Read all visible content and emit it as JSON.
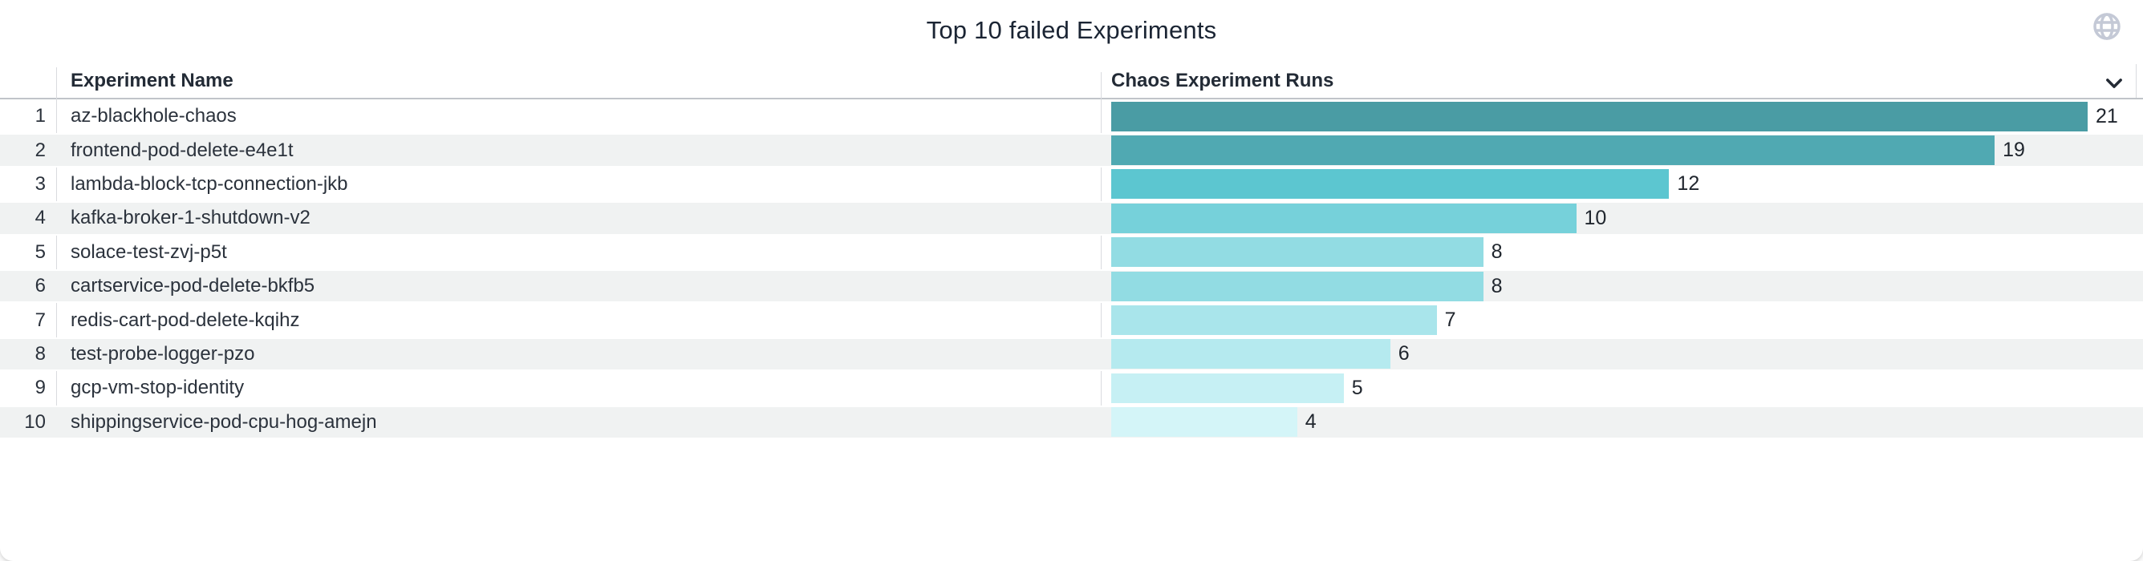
{
  "panel": {
    "title": "Top 10 failed Experiments",
    "title_color": "#1a2433",
    "icons": {
      "globe": "globe-icon",
      "header_chevron": "chevron-down-icon"
    }
  },
  "table": {
    "columns": {
      "rank": "",
      "name": "Experiment Name",
      "runs": "Chaos Experiment Runs"
    },
    "stripe_color": "#f0f2f2",
    "divider_color": "#d9dbdf",
    "header_border_color": "#c0c4c9"
  },
  "chart_data": {
    "type": "bar",
    "orientation": "horizontal",
    "title": "Top 10 failed Experiments",
    "series_label": "Chaos Experiment Runs",
    "xlim": [
      0,
      21
    ],
    "grid": false,
    "legend": "none",
    "value_labels": "outside-end",
    "categories": [
      "az-blackhole-chaos",
      "frontend-pod-delete-e4e1t",
      "lambda-block-tcp-connection-jkb",
      "kafka-broker-1-shutdown-v2",
      "solace-test-zvj-p5t",
      "cartservice-pod-delete-bkfb5",
      "redis-cart-pod-delete-kqihz",
      "test-probe-logger-pzo",
      "gcp-vm-stop-identity",
      "shippingservice-pod-cpu-hog-amejn"
    ],
    "values": [
      21,
      19,
      12,
      10,
      8,
      8,
      7,
      6,
      5,
      4
    ],
    "rows": [
      {
        "rank": "1",
        "name": "az-blackhole-chaos",
        "value": 21,
        "color": "#4A9CA4"
      },
      {
        "rank": "2",
        "name": "frontend-pod-delete-e4e1t",
        "value": 19,
        "color": "#50A9B2"
      },
      {
        "rank": "3",
        "name": "lambda-block-tcp-connection-jkb",
        "value": 12,
        "color": "#5CC6D0"
      },
      {
        "rank": "4",
        "name": "kafka-broker-1-shutdown-v2",
        "value": 10,
        "color": "#76D1DA"
      },
      {
        "rank": "5",
        "name": "solace-test-zvj-p5t",
        "value": 8,
        "color": "#92DCE3"
      },
      {
        "rank": "6",
        "name": "cartservice-pod-delete-bkfb5",
        "value": 8,
        "color": "#92DCE3"
      },
      {
        "rank": "7",
        "name": "redis-cart-pod-delete-kqihz",
        "value": 7,
        "color": "#A9E5EB"
      },
      {
        "rank": "8",
        "name": "test-probe-logger-pzo",
        "value": 6,
        "color": "#B5EAEF"
      },
      {
        "rank": "9",
        "name": "gcp-vm-stop-identity",
        "value": 5,
        "color": "#C6F0F4"
      },
      {
        "rank": "10",
        "name": "shippingservice-pod-cpu-hog-amejn",
        "value": 4,
        "color": "#D4F5F8"
      }
    ]
  }
}
